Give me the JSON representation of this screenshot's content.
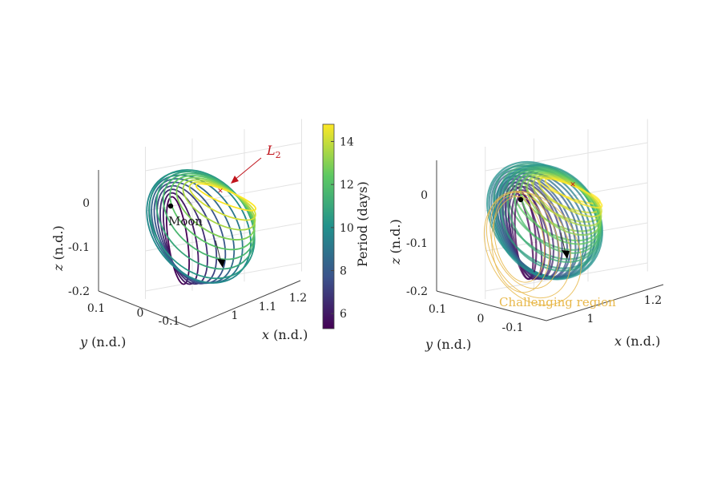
{
  "chart_data": [
    {
      "type": "line",
      "subtype": "3d-orbit-family",
      "xlabel_var": "x",
      "xlabel_unit": "(n.d.)",
      "ylabel_var": "y",
      "ylabel_unit": "(n.d.)",
      "zlabel_var": "z",
      "zlabel_unit": "(n.d.)",
      "x_ticks": [
        "1",
        "1.1",
        "1.2"
      ],
      "y_ticks": [
        "0.1",
        "0",
        "-0.1"
      ],
      "z_ticks": [
        "0",
        "-0.1",
        "-0.2"
      ],
      "grid": true,
      "orbit_count": 16,
      "color_by": "period",
      "annotations": {
        "l2_label": "L",
        "l2_sub": "2",
        "moon_label": "Moon"
      },
      "colors": {
        "l2": "#c0141c",
        "moon": "#000000"
      }
    },
    {
      "type": "line",
      "subtype": "3d-orbit-family",
      "xlabel_var": "x",
      "xlabel_unit": "(n.d.)",
      "ylabel_var": "y",
      "ylabel_unit": "(n.d.)",
      "zlabel_var": "z",
      "zlabel_unit": "(n.d.)",
      "x_ticks": [
        "1",
        "1.2"
      ],
      "y_ticks": [
        "0.1",
        "0",
        "-0.1"
      ],
      "z_ticks": [
        "0",
        "-0.1",
        "-0.2"
      ],
      "grid": true,
      "annotations": {
        "region_label": "Challenging region"
      },
      "colors": {
        "challenging": "#e8b84a"
      }
    }
  ],
  "colorbar": {
    "label": "Period (days)",
    "ticks": [
      "14",
      "12",
      "10",
      "8",
      "6"
    ],
    "range": [
      5.3,
      14.8
    ],
    "colormap": "viridis"
  }
}
